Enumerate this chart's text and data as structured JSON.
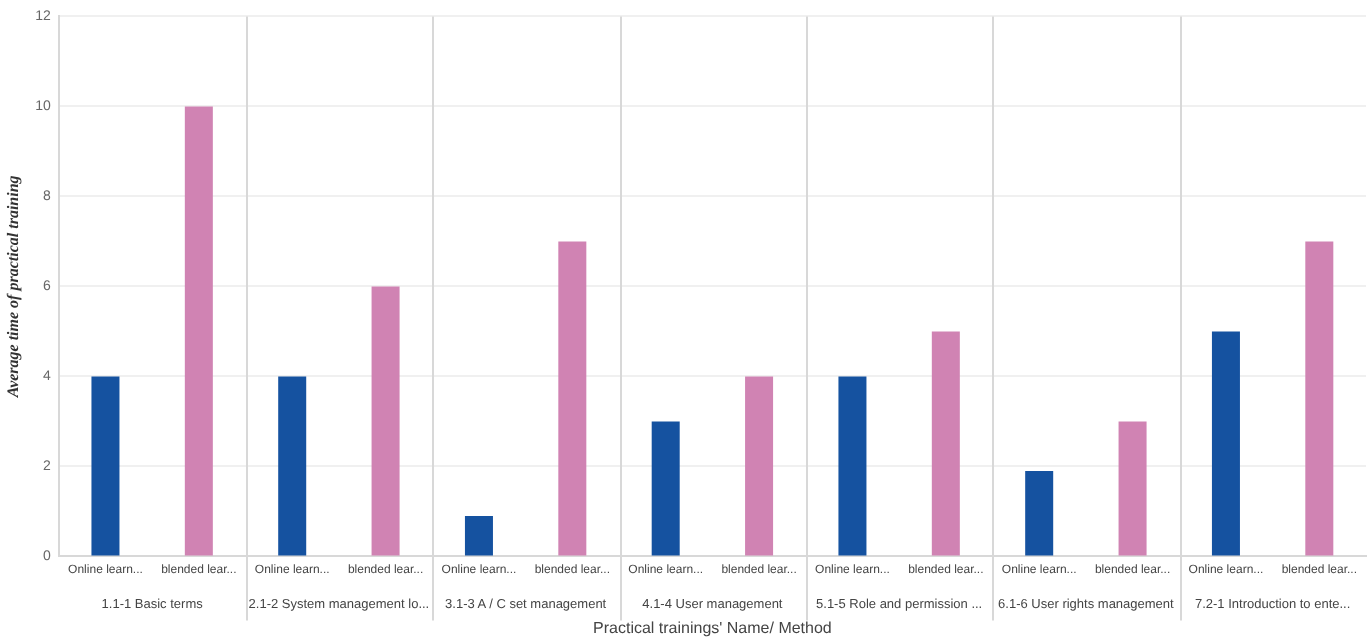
{
  "chart_data": {
    "type": "bar",
    "xlabel": "Practical trainings' Name/ Method",
    "ylabel": "Average time of practical training",
    "categories": [
      "Online learn...",
      "blended lear...",
      "Online learn...",
      "blended lear...",
      "Online learn...",
      "blended lear...",
      "Online learn...",
      "blended lear...",
      "Online learn...",
      "blended lear...",
      "Online learn...",
      "blended lear...",
      "Online learn...",
      "blended lear..."
    ],
    "values": [
      4,
      10,
      4,
      6,
      0.9,
      7,
      3,
      4,
      4,
      5,
      1.9,
      3,
      5,
      7
    ],
    "colors": [
      "#1552a0",
      "#d083b3",
      "#1552a0",
      "#d083b3",
      "#1552a0",
      "#d083b3",
      "#1552a0",
      "#d083b3",
      "#1552a0",
      "#d083b3",
      "#1552a0",
      "#d083b3",
      "#1552a0",
      "#d083b3"
    ],
    "annotations": [
      "1.1-1 Basic terms",
      "2.1-2 System management lo...",
      "3.1-3 A / C set management",
      "4.1-4 User management",
      "5.1-5 Role and permission ...",
      "6.1-6 User rights management",
      "7.2-1 Introduction to ente..."
    ],
    "ylim": [
      0,
      12
    ],
    "yticks": [
      0,
      2,
      4,
      6,
      8,
      10,
      12
    ],
    "grid": "y",
    "legend": false
  }
}
